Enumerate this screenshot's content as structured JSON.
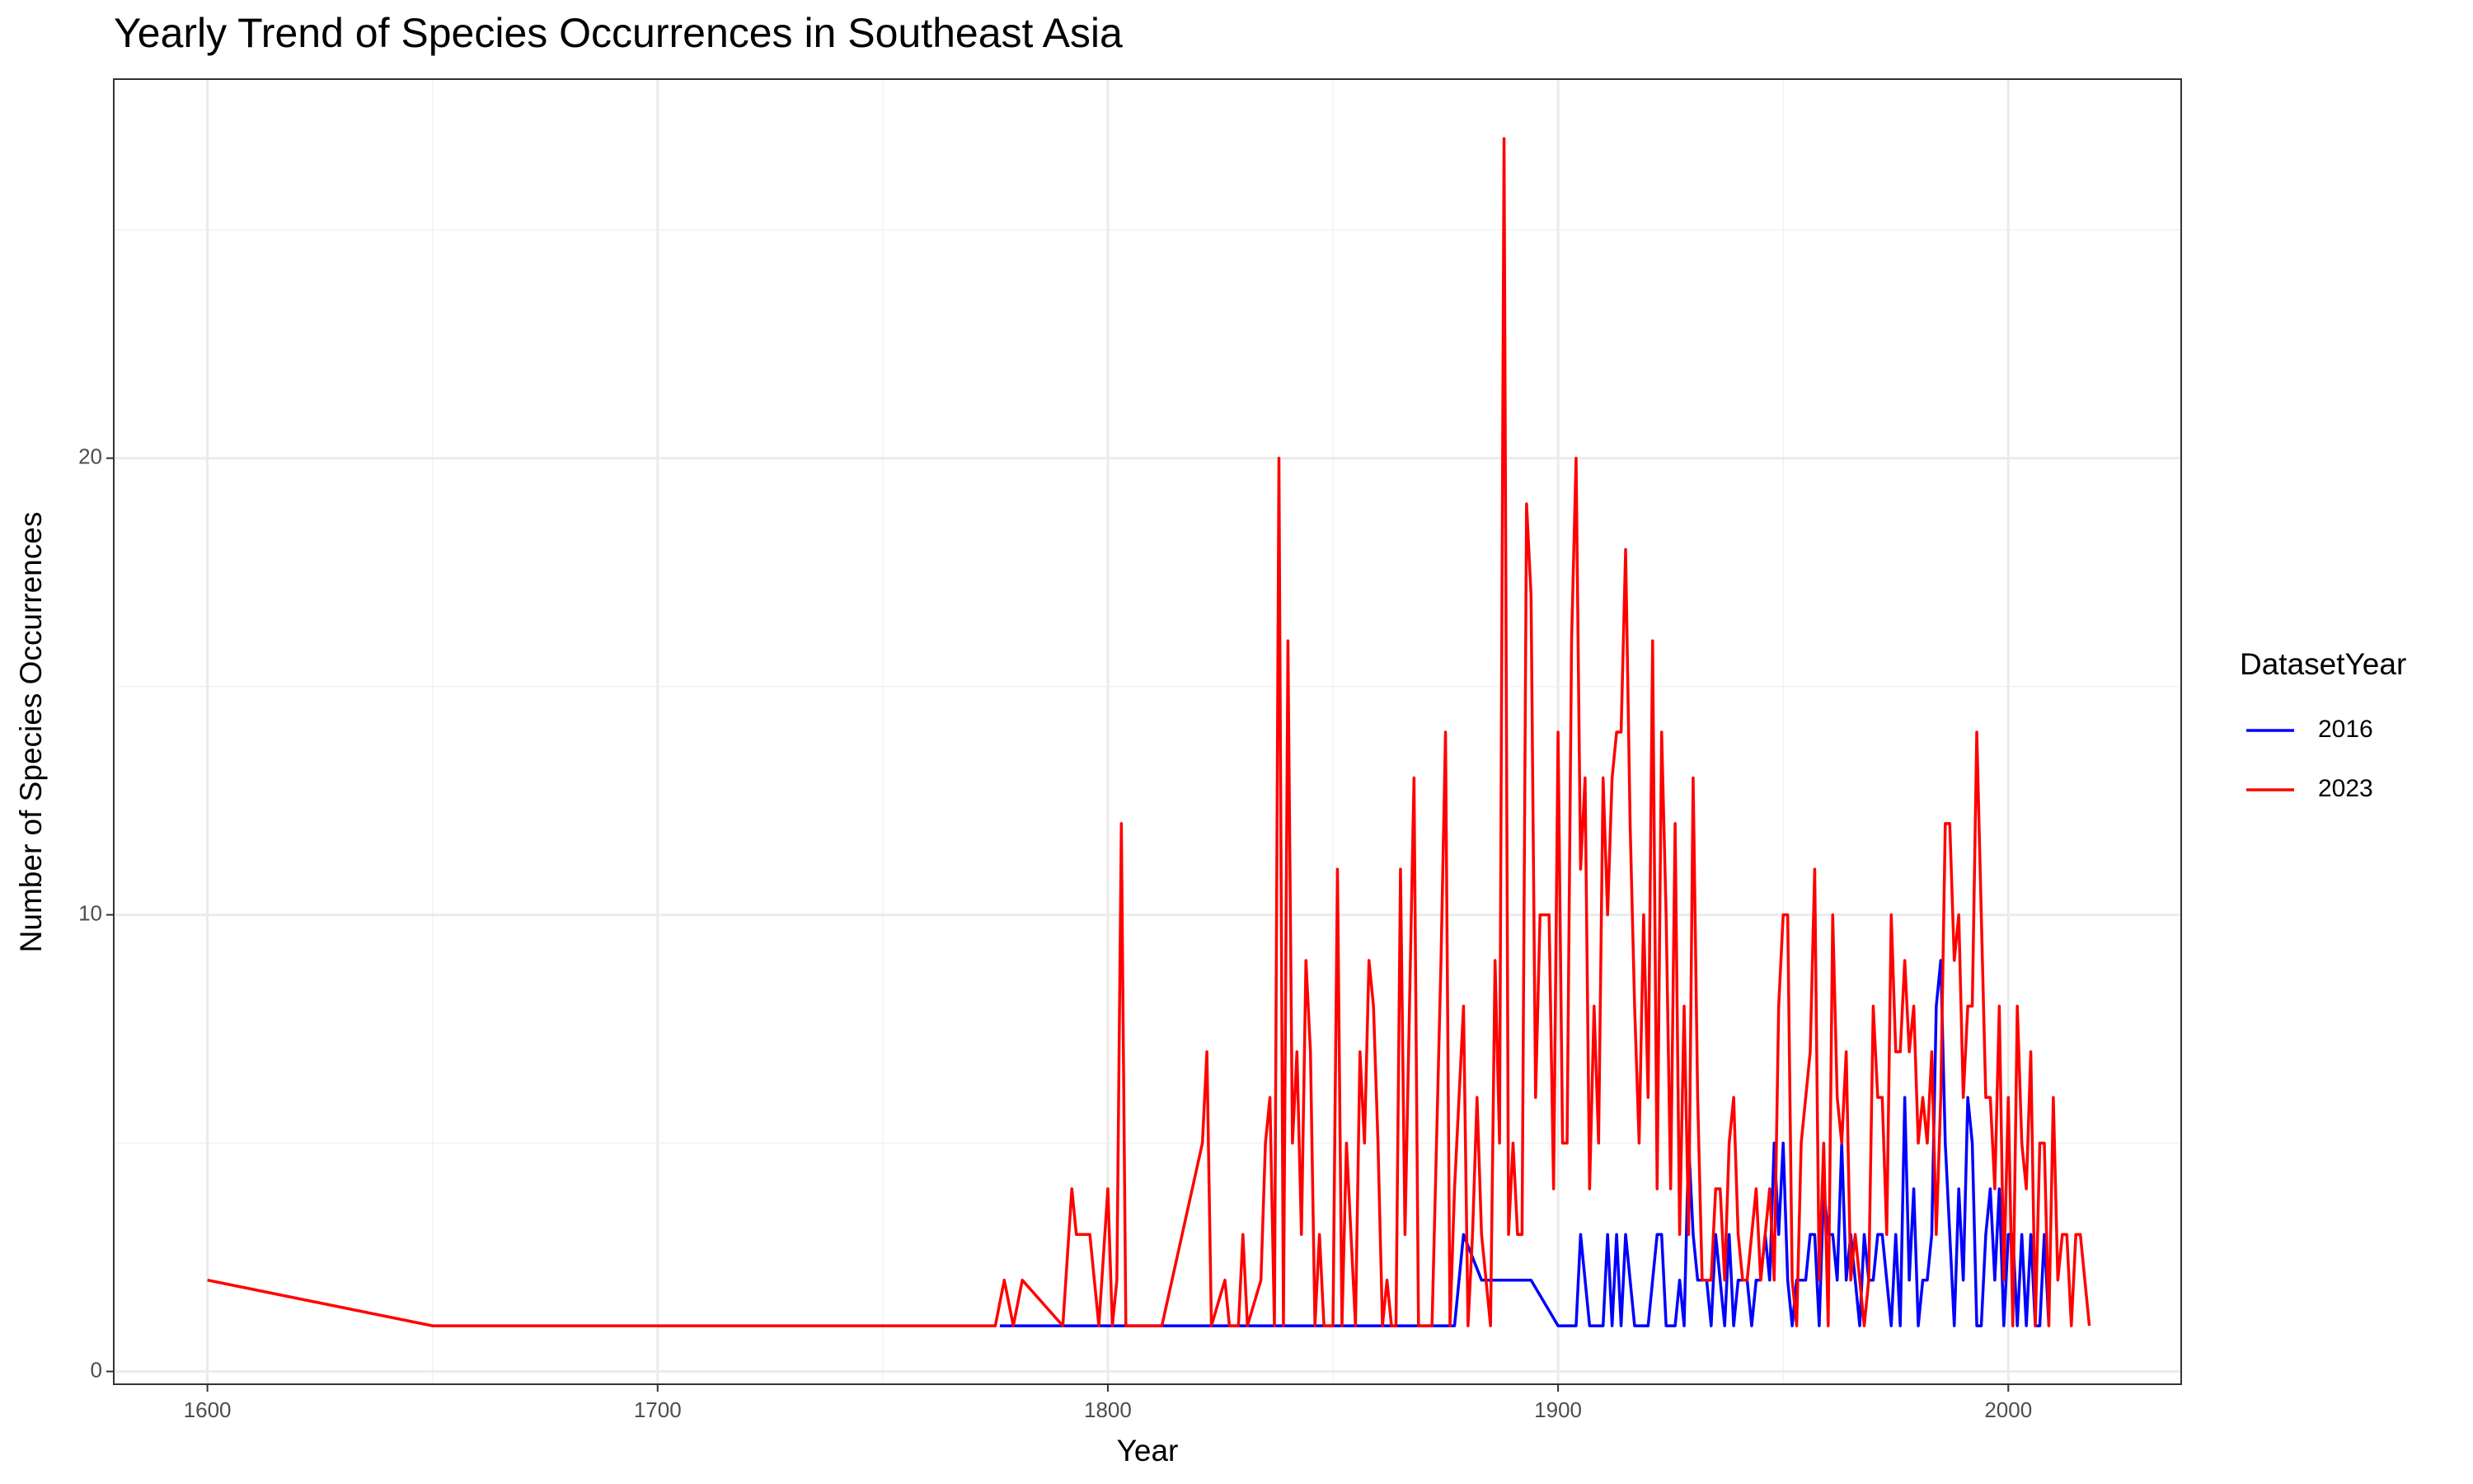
{
  "chart_data": {
    "type": "line",
    "title": "Yearly Trend of Species Occurrences in Southeast Asia",
    "x_label": "Year",
    "y_label": "Number of Species Occurrences",
    "legend_title": "DatasetYear",
    "legend_position": "right",
    "grid": true,
    "minor_grid": true,
    "xlim": [
      1579.2,
      2038.4
    ],
    "ylim": [
      -0.28,
      28.3
    ],
    "xticks": [
      1600,
      1700,
      1800,
      1900,
      2000
    ],
    "yticks": [
      0,
      10,
      20
    ],
    "series": [
      {
        "name": "2016",
        "color": "#0000ff",
        "x": [
          1776,
          1877,
          1879,
          1883,
          1894,
          1900,
          1903,
          1904,
          1905,
          1906,
          1907,
          1908,
          1909,
          1910,
          1911,
          1912,
          1913,
          1914,
          1915,
          1916,
          1917,
          1918,
          1919,
          1920,
          1921,
          1922,
          1923,
          1924,
          1925,
          1926,
          1927,
          1928,
          1929,
          1930,
          1931,
          1932,
          1933,
          1934,
          1935,
          1936,
          1937,
          1938,
          1939,
          1940,
          1941,
          1942,
          1943,
          1944,
          1945,
          1946,
          1947,
          1948,
          1949,
          1950,
          1951,
          1952,
          1953,
          1954,
          1955,
          1956,
          1957,
          1958,
          1959,
          1960,
          1961,
          1962,
          1963,
          1964,
          1965,
          1966,
          1967,
          1968,
          1969,
          1970,
          1971,
          1972,
          1973,
          1974,
          1975,
          1976,
          1977,
          1978,
          1979,
          1980,
          1981,
          1982,
          1983,
          1984,
          1985,
          1986,
          1987,
          1988,
          1989,
          1990,
          1991,
          1992,
          1993,
          1994,
          1995,
          1996,
          1997,
          1998,
          1999,
          2000,
          2001,
          2002,
          2003,
          2004,
          2005,
          2006,
          2007,
          2008,
          2009
        ],
        "values": [
          1,
          1,
          3,
          2,
          2,
          1,
          1,
          1,
          3,
          2,
          1,
          1,
          1,
          1,
          3,
          1,
          3,
          1,
          3,
          2,
          1,
          1,
          1,
          1,
          2,
          3,
          3,
          1,
          1,
          1,
          2,
          1,
          5,
          3,
          2,
          2,
          2,
          1,
          3,
          2,
          1,
          3,
          1,
          2,
          2,
          2,
          1,
          2,
          2,
          3,
          2,
          5,
          3,
          5,
          2,
          1,
          2,
          2,
          2,
          3,
          3,
          1,
          4,
          3,
          3,
          2,
          5,
          2,
          3,
          2,
          1,
          3,
          2,
          2,
          3,
          3,
          2,
          1,
          3,
          1,
          6,
          2,
          4,
          1,
          2,
          2,
          3,
          8,
          9,
          5,
          3,
          1,
          4,
          2,
          6,
          5,
          1,
          1,
          3,
          4,
          2,
          4,
          1,
          3,
          3,
          1,
          3,
          1,
          3,
          1,
          1,
          3,
          1
        ]
      },
      {
        "name": "2023",
        "color": "#ff0000",
        "x": [
          1600,
          1650,
          1775,
          1777,
          1779,
          1781,
          1790,
          1792,
          1793,
          1796,
          1798,
          1800,
          1801,
          1802,
          1803,
          1804,
          1812,
          1821,
          1822,
          1823,
          1826,
          1827,
          1829,
          1830,
          1831,
          1834,
          1835,
          1836,
          1837,
          1838,
          1839,
          1840,
          1841,
          1842,
          1843,
          1844,
          1845,
          1846,
          1847,
          1848,
          1850,
          1851,
          1852,
          1853,
          1854,
          1855,
          1856,
          1857,
          1858,
          1859,
          1860,
          1861,
          1862,
          1863,
          1864,
          1865,
          1866,
          1867,
          1868,
          1869,
          1871,
          1872,
          1874,
          1875,
          1876,
          1877,
          1879,
          1880,
          1881,
          1882,
          1883,
          1885,
          1886,
          1887,
          1888,
          1889,
          1890,
          1891,
          1892,
          1893,
          1894,
          1895,
          1896,
          1897,
          1898,
          1899,
          1900,
          1901,
          1902,
          1903,
          1904,
          1905,
          1906,
          1907,
          1908,
          1909,
          1910,
          1911,
          1912,
          1913,
          1914,
          1915,
          1916,
          1917,
          1918,
          1919,
          1920,
          1921,
          1922,
          1923,
          1924,
          1925,
          1926,
          1927,
          1928,
          1929,
          1930,
          1931,
          1932,
          1933,
          1934,
          1935,
          1936,
          1937,
          1938,
          1939,
          1940,
          1941,
          1942,
          1943,
          1944,
          1945,
          1946,
          1947,
          1948,
          1949,
          1950,
          1951,
          1952,
          1953,
          1954,
          1955,
          1956,
          1957,
          1958,
          1959,
          1960,
          1961,
          1962,
          1963,
          1964,
          1965,
          1966,
          1967,
          1968,
          1969,
          1970,
          1971,
          1972,
          1973,
          1974,
          1975,
          1976,
          1977,
          1978,
          1979,
          1980,
          1981,
          1982,
          1983,
          1984,
          1985,
          1986,
          1987,
          1988,
          1989,
          1990,
          1991,
          1992,
          1993,
          1994,
          1995,
          1996,
          1997,
          1998,
          1999,
          2000,
          2001,
          2002,
          2003,
          2004,
          2005,
          2006,
          2007,
          2008,
          2009,
          2010,
          2011,
          2012,
          2013,
          2014,
          2015,
          2016,
          2017,
          2018
        ],
        "values": [
          2,
          1,
          1,
          2,
          1,
          2,
          1,
          4,
          3,
          3,
          1,
          4,
          1,
          2,
          12,
          1,
          1,
          5,
          7,
          1,
          2,
          1,
          1,
          3,
          1,
          2,
          5,
          6,
          1,
          20,
          1,
          16,
          5,
          7,
          3,
          9,
          7,
          1,
          3,
          1,
          1,
          11,
          1,
          5,
          3,
          1,
          7,
          5,
          9,
          8,
          5,
          1,
          2,
          1,
          1,
          11,
          3,
          8,
          13,
          1,
          1,
          1,
          9,
          14,
          1,
          4,
          8,
          1,
          3,
          6,
          3,
          1,
          9,
          5,
          27,
          3,
          5,
          3,
          3,
          19,
          17,
          6,
          10,
          10,
          10,
          4,
          14,
          5,
          5,
          16,
          20,
          11,
          13,
          4,
          8,
          5,
          13,
          10,
          13,
          14,
          14,
          18,
          12,
          8,
          5,
          10,
          6,
          16,
          4,
          14,
          10,
          4,
          12,
          3,
          8,
          3,
          13,
          6,
          2,
          2,
          2,
          4,
          4,
          2,
          5,
          6,
          3,
          2,
          2,
          3,
          4,
          2,
          3,
          4,
          2,
          8,
          10,
          10,
          2,
          1,
          5,
          6,
          7,
          11,
          2,
          5,
          1,
          10,
          6,
          5,
          7,
          2,
          3,
          2,
          1,
          2,
          8,
          6,
          6,
          3,
          10,
          7,
          7,
          9,
          7,
          8,
          5,
          6,
          5,
          7,
          3,
          6,
          12,
          12,
          9,
          10,
          6,
          8,
          8,
          14,
          10,
          6,
          6,
          4,
          8,
          2,
          6,
          1,
          8,
          5,
          4,
          7,
          1,
          5,
          5,
          1,
          6,
          2,
          3,
          3,
          1,
          3,
          3,
          2,
          1
        ]
      }
    ]
  }
}
